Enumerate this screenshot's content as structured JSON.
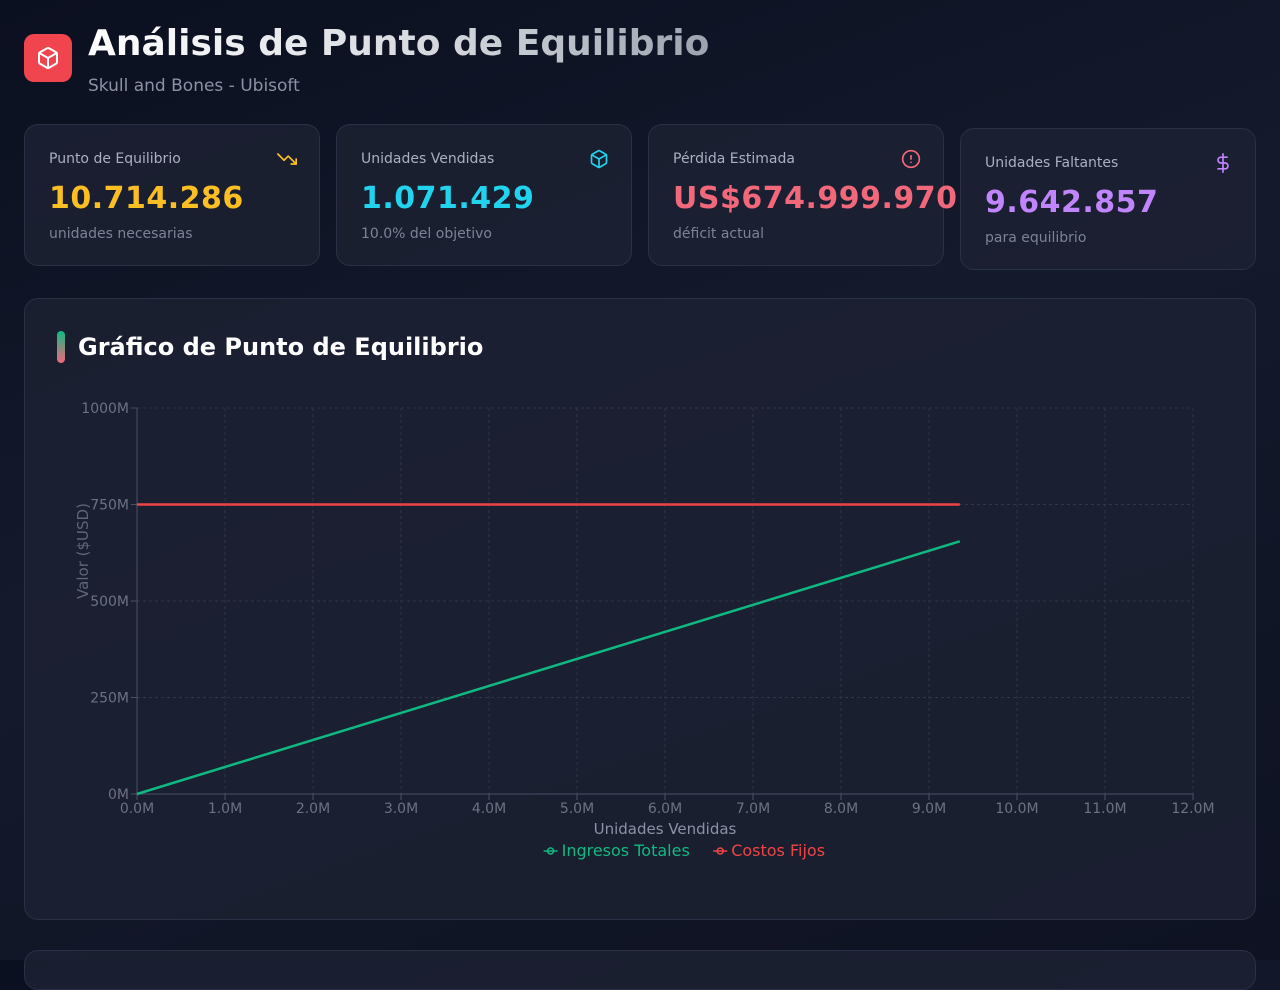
{
  "header": {
    "title": "Análisis de Punto de Equilibrio",
    "subtitle": "Skull and Bones - Ubisoft",
    "logo_icon": "package-icon"
  },
  "cards": [
    {
      "label": "Punto de Equilibrio",
      "value": "10.714.286",
      "note": "unidades necesarias",
      "color": "#fbbf24",
      "icon": "trending-down-icon"
    },
    {
      "label": "Unidades Vendidas",
      "value": "1.071.429",
      "note": "10.0% del objetivo",
      "color": "#22d3ee",
      "icon": "package-icon"
    },
    {
      "label": "Pérdida Estimada",
      "value": "US$674.999.970",
      "note": "déficit actual",
      "color": "#f0687a",
      "icon": "alert-circle-icon"
    },
    {
      "label": "Unidades Faltantes",
      "value": "9.642.857",
      "note": "para equilibrio",
      "color": "#c084fc",
      "icon": "dollar-icon"
    }
  ],
  "chart_panel": {
    "title": "Gráfico de Punto de Equilibrio"
  },
  "chart_data": {
    "type": "line",
    "title": "Gráfico de Punto de Equilibrio",
    "xlabel": "Unidades Vendidas",
    "ylabel": "Valor ($USD)",
    "xlim": [
      0,
      12000000
    ],
    "ylim": [
      0,
      1000000000
    ],
    "x_ticks": [
      0,
      1000000,
      2000000,
      3000000,
      4000000,
      5000000,
      6000000,
      7000000,
      8000000,
      9000000,
      10000000,
      11000000,
      12000000
    ],
    "x_tick_labels": [
      "0.0M",
      "1.0M",
      "2.0M",
      "3.0M",
      "4.0M",
      "5.0M",
      "6.0M",
      "7.0M",
      "8.0M",
      "9.0M",
      "10.0M",
      "11.0M",
      "12.0M"
    ],
    "y_ticks": [
      0,
      250000000,
      500000000,
      750000000,
      1000000000
    ],
    "y_tick_labels": [
      "0M",
      "250M",
      "500M",
      "750M",
      "1000M"
    ],
    "grid": true,
    "legend_position": "bottom-center",
    "series": [
      {
        "name": "Ingresos Totales",
        "color": "#10b981",
        "x": [
          0,
          9350000
        ],
        "y": [
          0,
          654500000
        ]
      },
      {
        "name": "Costos Fijos",
        "color": "#ef4444",
        "x": [
          0,
          9350000
        ],
        "y": [
          750000000,
          750000000
        ]
      }
    ]
  }
}
